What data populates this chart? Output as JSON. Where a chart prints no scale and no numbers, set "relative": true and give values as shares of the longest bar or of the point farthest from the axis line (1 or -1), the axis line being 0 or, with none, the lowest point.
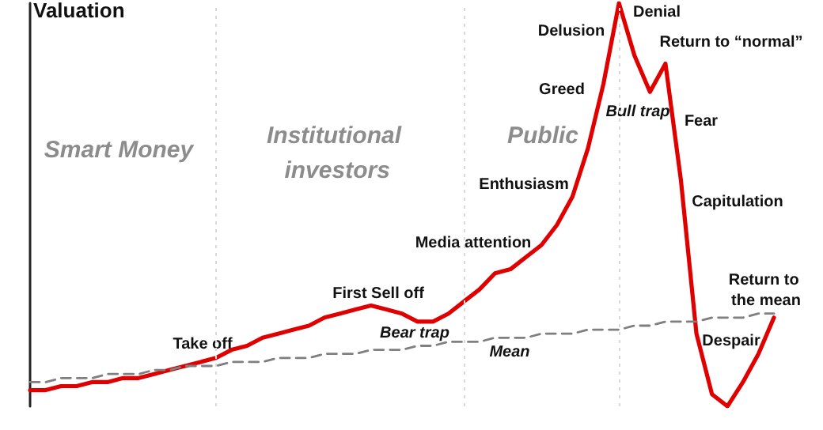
{
  "chart_data": {
    "type": "line",
    "ylabel": "Valuation",
    "relative": true,
    "tick_labels": false,
    "grid": "x",
    "marker": "none",
    "categories": [
      null,
      null,
      null,
      null,
      null,
      null,
      null,
      null,
      null,
      null,
      null,
      null,
      null,
      null,
      null,
      null,
      null,
      null,
      null,
      null,
      null,
      null,
      null,
      null,
      null,
      null,
      null,
      null,
      null,
      null,
      null,
      null,
      null,
      null,
      null,
      null,
      null,
      null,
      null,
      null,
      null,
      null,
      null,
      null,
      null,
      null,
      null,
      null,
      null
    ],
    "series": [
      {
        "color": "#e00000",
        "line_style": "solid",
        "values": [
          0.04,
          0.04,
          0.05,
          0.05,
          0.06,
          0.06,
          0.07,
          0.07,
          0.08,
          0.09,
          0.1,
          0.11,
          0.12,
          0.14,
          0.15,
          0.17,
          0.18,
          0.19,
          0.2,
          0.22,
          0.23,
          0.24,
          0.25,
          0.24,
          0.23,
          0.21,
          0.21,
          0.23,
          0.26,
          0.29,
          0.33,
          0.34,
          0.37,
          0.4,
          0.45,
          0.52,
          0.64,
          0.8,
          1,
          0.87,
          0.78,
          0.85,
          0.56,
          0.18,
          0.03,
          0,
          0.06,
          0.13,
          0.22
        ]
      },
      {
        "color": "#7f7f7f",
        "line_style": "dashed",
        "values": [
          0.06,
          0.06,
          0.07,
          0.07,
          0.07,
          0.08,
          0.08,
          0.08,
          0.09,
          0.09,
          0.1,
          0.1,
          0.1,
          0.11,
          0.11,
          0.11,
          0.12,
          0.12,
          0.12,
          0.13,
          0.13,
          0.13,
          0.14,
          0.14,
          0.14,
          0.15,
          0.15,
          0.16,
          0.16,
          0.16,
          0.17,
          0.17,
          0.17,
          0.18,
          0.18,
          0.18,
          0.19,
          0.19,
          0.19,
          0.2,
          0.2,
          0.21,
          0.21,
          0.21,
          0.22,
          0.22,
          0.22,
          0.23,
          0.23
        ]
      }
    ],
    "annotations": [
      "Take off",
      "First Sell off",
      "Bear trap",
      "Media attention",
      "Enthusiasm",
      "Greed",
      "Delusion",
      "Denial",
      "Bull trap",
      "Return to “normal”",
      "Fear",
      "Capitulation",
      "Despair",
      "Return to the mean",
      "Mean",
      "Smart Money",
      "Institutional investors",
      "Public"
    ]
  }
}
